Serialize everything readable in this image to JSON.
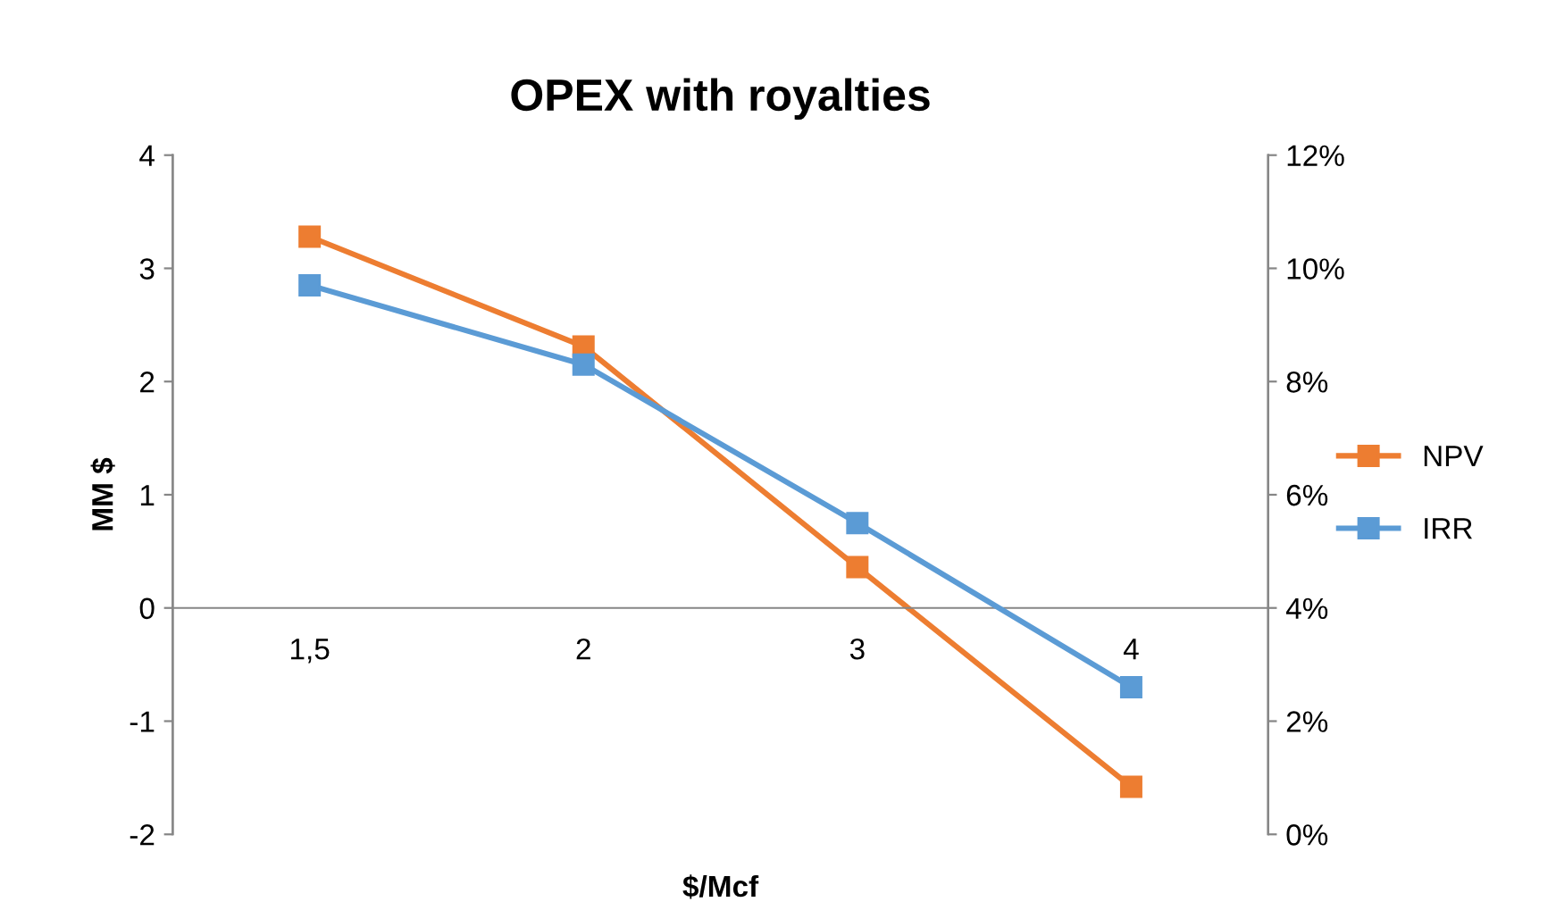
{
  "chart_data": {
    "type": "line",
    "title": "OPEX with royalties",
    "xlabel": "$/Mcf",
    "ylabel": "MM $",
    "categories": [
      "1,5",
      "2",
      "3",
      "4"
    ],
    "series": [
      {
        "name": "NPV",
        "color": "#ed7d31",
        "values": [
          3.28,
          2.31,
          0.36,
          -1.58
        ]
      },
      {
        "name": "IRR",
        "color": "#5b9bd5",
        "axis": "y2",
        "values": [
          9.7,
          8.3,
          5.5,
          2.6
        ]
      }
    ],
    "ylim": [
      -2,
      4
    ],
    "yticks": [
      -2,
      -1,
      0,
      1,
      2,
      3,
      4
    ],
    "y2lim": [
      0,
      12
    ],
    "y2ticks": [
      {
        "value": 0,
        "label": "0%"
      },
      {
        "value": 2,
        "label": "2%"
      },
      {
        "value": 4,
        "label": "4%"
      },
      {
        "value": 6,
        "label": "6%"
      },
      {
        "value": 8,
        "label": "8%"
      },
      {
        "value": 10,
        "label": "10%"
      },
      {
        "value": 12,
        "label": "12%"
      }
    ],
    "marker": "square",
    "line_style": "solid",
    "grid": false,
    "legend": "right"
  }
}
